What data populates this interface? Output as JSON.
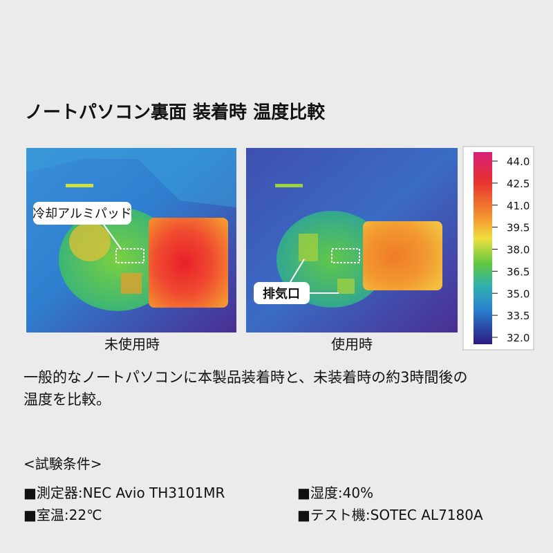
{
  "title": "ノートパソコン裏面 装着時 温度比較",
  "images": [
    {
      "caption": "未使用時",
      "callout": "冷却アルミパッド"
    },
    {
      "caption": "使用時",
      "callout": "排気口"
    }
  ],
  "scale": {
    "ticks": [
      "44.0",
      "42.5",
      "41.0",
      "39.5",
      "38.0",
      "36.5",
      "35.0",
      "33.5",
      "32.0"
    ]
  },
  "description": [
    "一般的なノートパソコンに本製品装着時と、未装着時の約3時間後の",
    "温度を比較。"
  ],
  "conditions": {
    "heading": "<試験条件>",
    "items": [
      "■測定器:NEC Avio TH3101MR",
      "■湿度:40%",
      "■室温:22℃",
      "■テスト機:SOTEC AL7180A"
    ]
  }
}
